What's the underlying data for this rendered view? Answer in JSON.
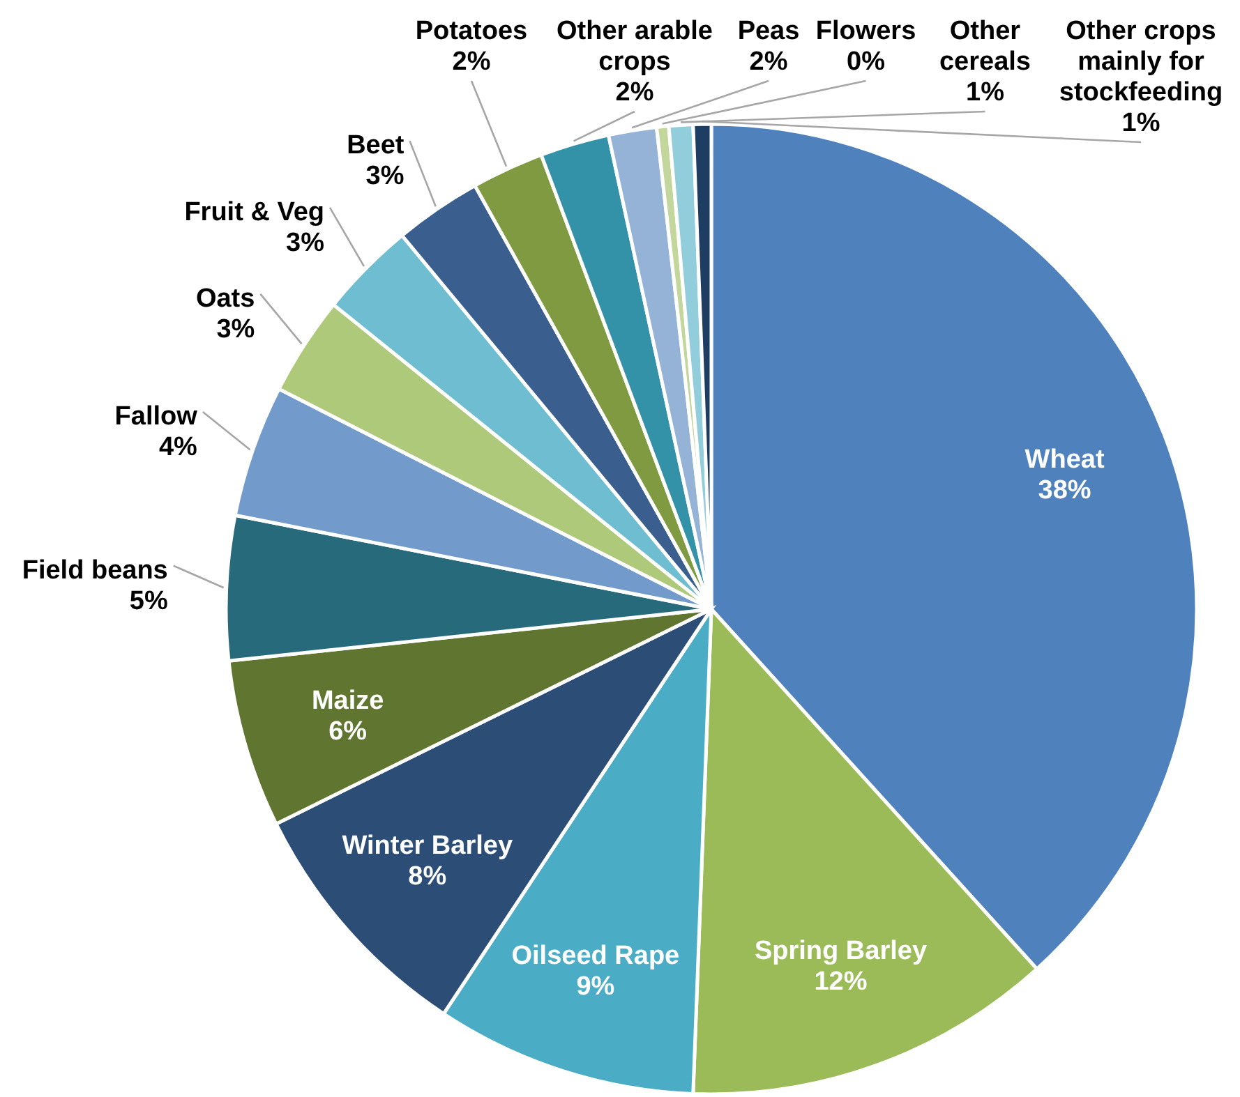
{
  "chart_data": {
    "type": "pie",
    "categories": [
      "Wheat",
      "Spring Barley",
      "Oilseed Rape",
      "Winter Barley",
      "Maize",
      "Field beans",
      "Fallow",
      "Oats",
      "Fruit & Veg",
      "Beet",
      "Potatoes",
      "Other arable crops",
      "Peas",
      "Flowers",
      "Other cereals",
      "Other crops mainly for stockfeeding"
    ],
    "values": [
      38.3,
      12.3,
      8.7,
      8.4,
      5.6,
      4.8,
      4.4,
      3.3,
      3.2,
      2.9,
      2.4,
      2.3,
      1.6,
      0.4,
      0.8,
      0.6
    ],
    "value_labels": [
      "38%",
      "12%",
      "9%",
      "8%",
      "6%",
      "5%",
      "4%",
      "3%",
      "3%",
      "3%",
      "2%",
      "2%",
      "2%",
      "0%",
      "1%",
      "1%"
    ],
    "colors": [
      "#4f81bd",
      "#9bbb59",
      "#4bacc6",
      "#2c4d75",
      "#5f7530",
      "#276a7c",
      "#729aca",
      "#afc97a",
      "#6fbdd1",
      "#3a5f8f",
      "#7f9a40",
      "#3492a8",
      "#95b3d7",
      "#c3d69b",
      "#92cddc",
      "#1f3d63"
    ]
  }
}
